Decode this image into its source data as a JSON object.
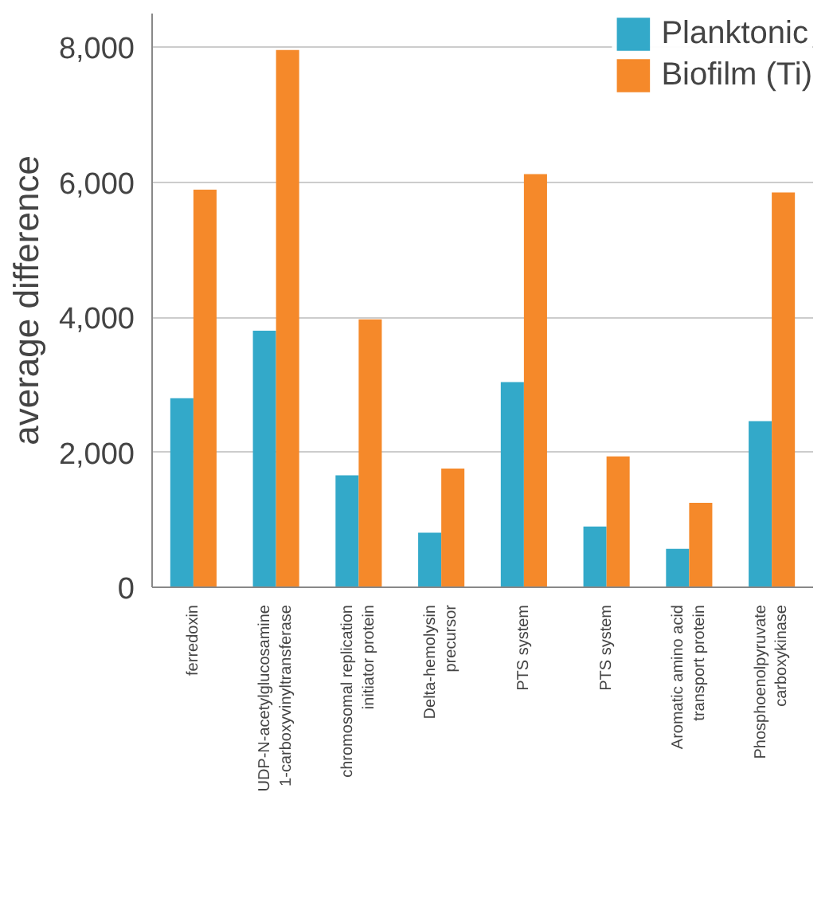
{
  "chart_data": {
    "type": "bar",
    "categories": [
      "ferredoxin",
      "UDP-N-acetylglucosamine\n1-carboxyvinyltransferase",
      "chromosomal replication\ninitiator protein",
      "Delta-hemolysin\nprecursor",
      "PTS system",
      "PTS system",
      "Aromatic amino acid\ntransport protein",
      "Phosphoenolpyruvate\ncarboxykinase"
    ],
    "series": [
      {
        "name": "Planktonic",
        "color": "#33a9c9",
        "values": [
          2800,
          3800,
          1660,
          810,
          3040,
          900,
          570,
          2460
        ]
      },
      {
        "name": "Biofilm (Ti)",
        "color": "#f5892a",
        "values": [
          5890,
          7960,
          3970,
          1760,
          6120,
          1940,
          1250,
          5850
        ]
      }
    ],
    "ylabel": "average difference",
    "ylim": [
      0,
      8500
    ],
    "yticks": [
      {
        "value": 0,
        "label": "0"
      },
      {
        "value": 2000,
        "label": "2,000"
      },
      {
        "value": 4000,
        "label": "4,000"
      },
      {
        "value": 6000,
        "label": "6,000"
      },
      {
        "value": 8000,
        "label": "8,000"
      }
    ],
    "grid": "y",
    "legend": "top right"
  }
}
